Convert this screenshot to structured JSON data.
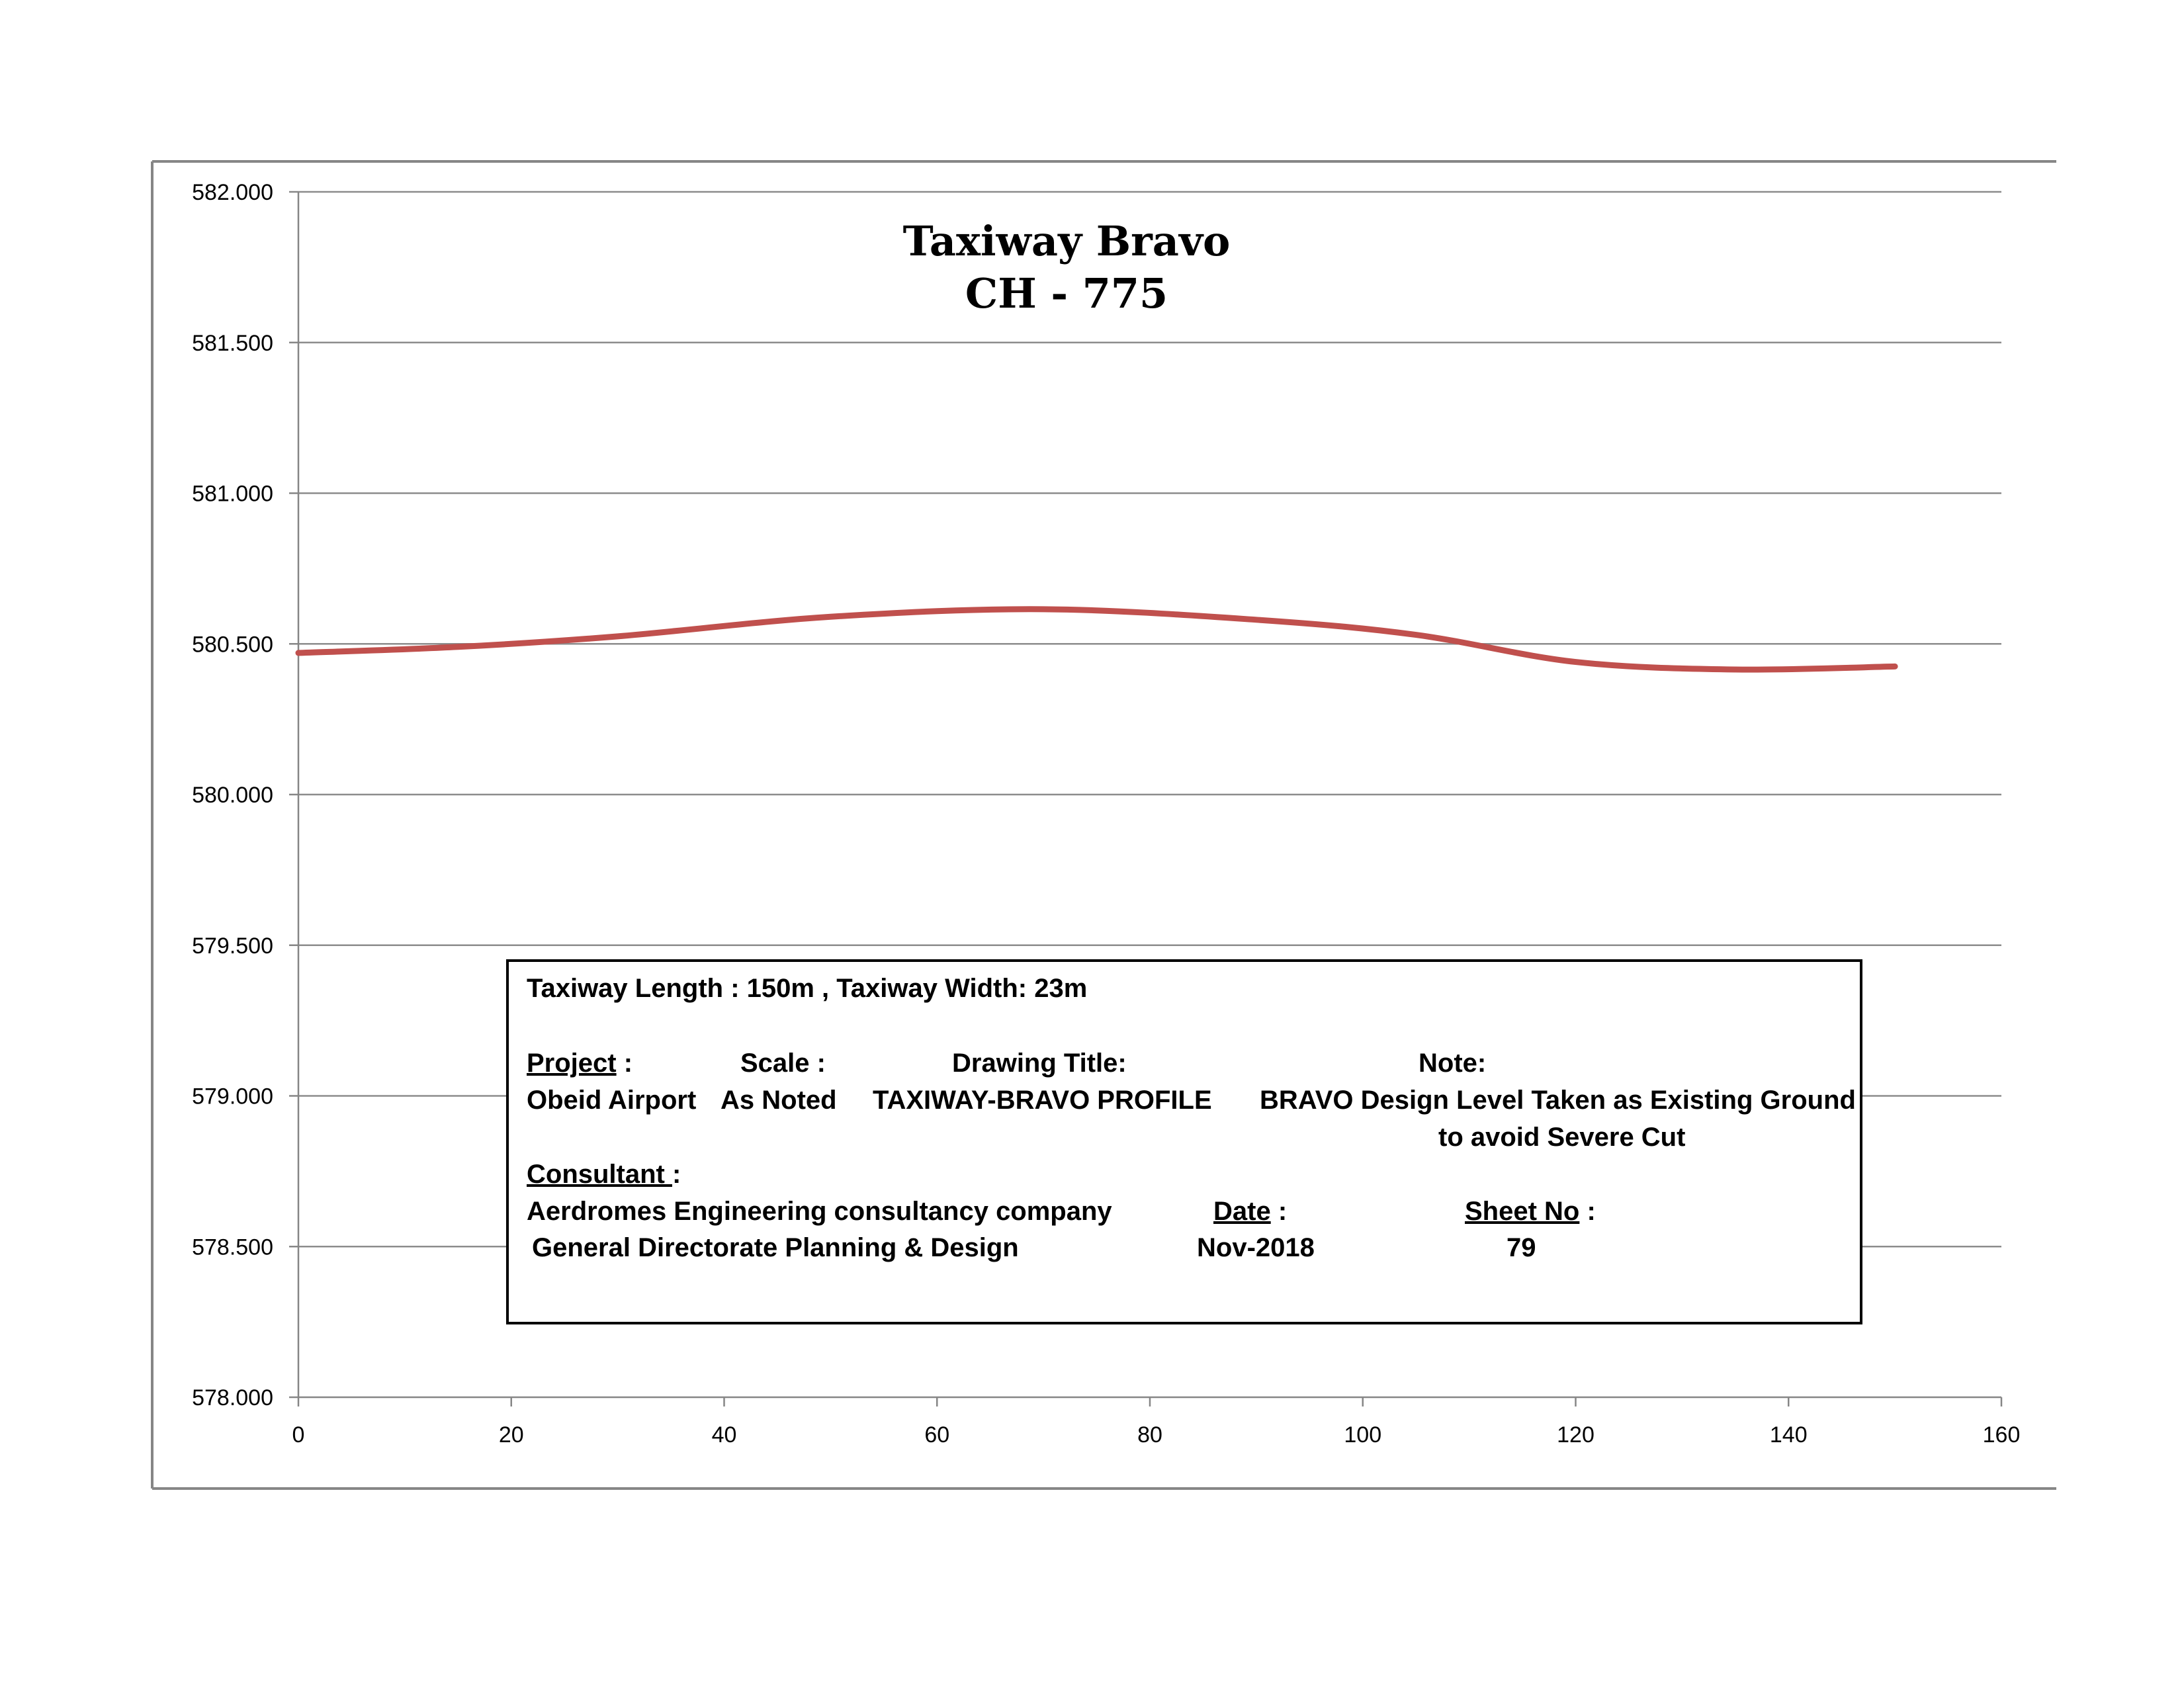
{
  "chart_data": {
    "type": "line",
    "title": "Taxiway Bravo",
    "subtitle": "CH - 775",
    "xlabel": "",
    "ylabel": "",
    "xlim": [
      0,
      160
    ],
    "ylim": [
      578.0,
      582.0
    ],
    "x_ticks": [
      "0",
      "20",
      "40",
      "60",
      "80",
      "100",
      "120",
      "140",
      "160"
    ],
    "y_ticks": [
      "578.000",
      "578.500",
      "579.000",
      "579.500",
      "580.000",
      "580.500",
      "581.000",
      "581.500",
      "582.000"
    ],
    "grid": true,
    "series": [
      {
        "color": "#c0504d",
        "x": [
          0,
          15,
          30,
          50,
          70,
          90,
          105,
          120,
          135,
          150
        ],
        "y": [
          580.47,
          580.49,
          580.525,
          580.59,
          580.615,
          580.58,
          580.53,
          580.44,
          580.415,
          580.425
        ]
      }
    ]
  },
  "info_box": {
    "line1": "Taxiway Length : 150m ,  Taxiway Width: 23m",
    "project_label": "Project",
    "project_colon": " :",
    "project_value": "Obeid Airport",
    "scale_label": "Scale :",
    "scale_value": "As Noted",
    "drawing_title_label": "Drawing Title:",
    "drawing_title_value": "TAXIWAY-BRAVO PROFILE",
    "note_label": "Note:",
    "note_line1": "BRAVO Design Level  Taken as Existing Ground",
    "note_line2": "to avoid Severe Cut",
    "consultant_label": "Consultant ",
    "consultant_colon": ":",
    "consultant_line1": "Aerdromes Engineering consultancy company",
    "consultant_line2": "General Directorate Planning & Design",
    "date_label": "Date",
    "date_colon": " :",
    "date_value": "Nov-2018",
    "sheet_label": "Sheet No",
    "sheet_colon": "  :",
    "sheet_value": "79"
  }
}
